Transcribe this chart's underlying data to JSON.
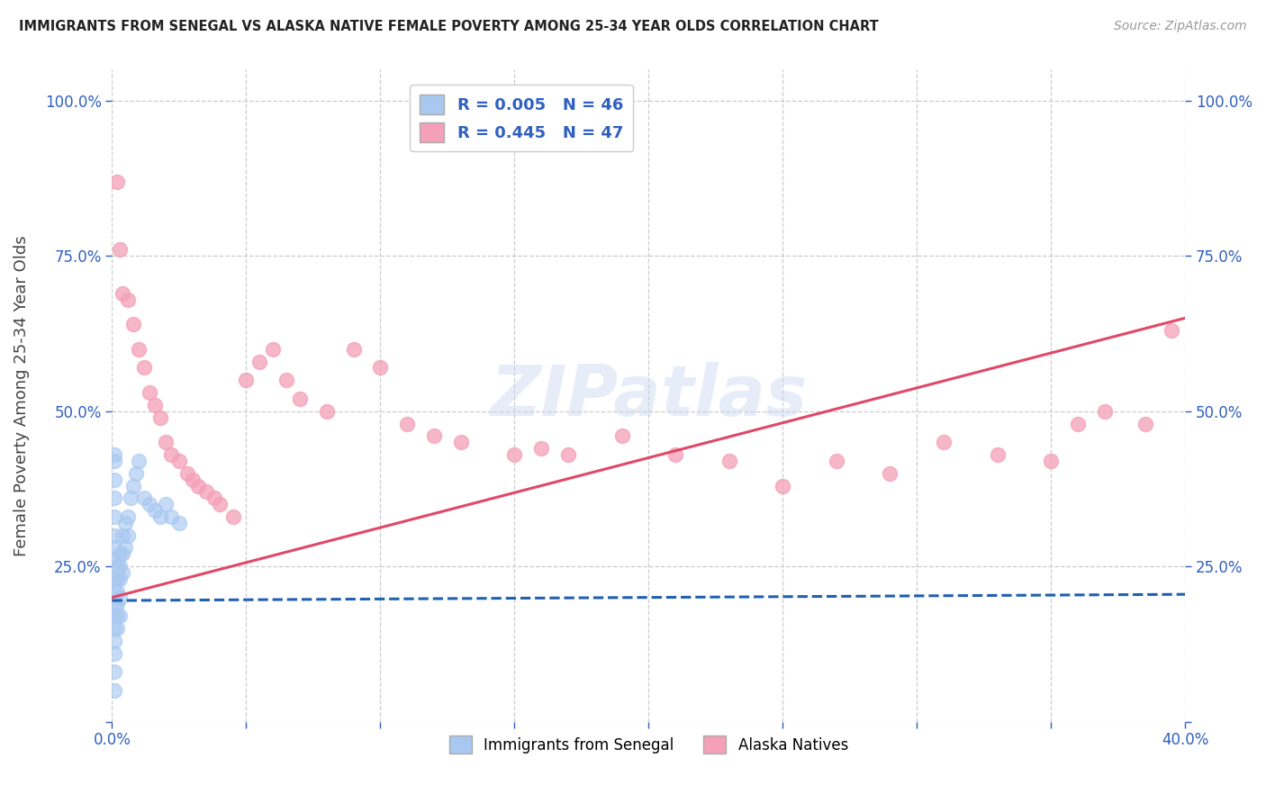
{
  "title": "IMMIGRANTS FROM SENEGAL VS ALASKA NATIVE FEMALE POVERTY AMONG 25-34 YEAR OLDS CORRELATION CHART",
  "source": "Source: ZipAtlas.com",
  "ylabel": "Female Poverty Among 25-34 Year Olds",
  "xlim": [
    0.0,
    0.4
  ],
  "ylim": [
    0.0,
    1.05
  ],
  "xtick_positions": [
    0.0,
    0.05,
    0.1,
    0.15,
    0.2,
    0.25,
    0.3,
    0.35,
    0.4
  ],
  "xtick_labels": [
    "0.0%",
    "",
    "",
    "",
    "",
    "",
    "",
    "",
    "40.0%"
  ],
  "ytick_positions": [
    0.0,
    0.25,
    0.5,
    0.75,
    1.0
  ],
  "ytick_labels_left": [
    "",
    "25.0%",
    "50.0%",
    "75.0%",
    "100.0%"
  ],
  "ytick_labels_right": [
    "",
    "25.0%",
    "50.0%",
    "75.0%",
    "100.0%"
  ],
  "blue_color": "#a8c8f0",
  "pink_color": "#f4a0b8",
  "blue_line_color": "#2060b0",
  "pink_line_color": "#e04868",
  "background_color": "#ffffff",
  "watermark_text": "ZIPatlas",
  "blue_trendline": [
    0.0,
    0.195,
    0.4,
    0.205
  ],
  "pink_trendline": [
    0.0,
    0.2,
    0.4,
    0.65
  ],
  "blue_x": [
    0.001,
    0.001,
    0.001,
    0.001,
    0.001,
    0.001,
    0.001,
    0.001,
    0.001,
    0.001,
    0.001,
    0.001,
    0.001,
    0.001,
    0.001,
    0.002,
    0.002,
    0.002,
    0.002,
    0.002,
    0.002,
    0.003,
    0.003,
    0.003,
    0.003,
    0.003,
    0.004,
    0.004,
    0.004,
    0.005,
    0.005,
    0.006,
    0.006,
    0.007,
    0.008,
    0.009,
    0.01,
    0.012,
    0.014,
    0.016,
    0.018,
    0.02,
    0.022,
    0.025,
    0.001,
    0.001
  ],
  "blue_y": [
    0.43,
    0.39,
    0.36,
    0.33,
    0.3,
    0.28,
    0.26,
    0.23,
    0.21,
    0.19,
    0.17,
    0.15,
    0.13,
    0.11,
    0.08,
    0.25,
    0.23,
    0.21,
    0.19,
    0.17,
    0.15,
    0.27,
    0.25,
    0.23,
    0.2,
    0.17,
    0.3,
    0.27,
    0.24,
    0.32,
    0.28,
    0.33,
    0.3,
    0.36,
    0.38,
    0.4,
    0.42,
    0.36,
    0.35,
    0.34,
    0.33,
    0.35,
    0.33,
    0.32,
    0.42,
    0.05
  ],
  "pink_x": [
    0.002,
    0.003,
    0.004,
    0.006,
    0.008,
    0.01,
    0.012,
    0.014,
    0.016,
    0.018,
    0.02,
    0.022,
    0.025,
    0.028,
    0.03,
    0.032,
    0.035,
    0.038,
    0.04,
    0.045,
    0.05,
    0.055,
    0.06,
    0.065,
    0.07,
    0.08,
    0.09,
    0.1,
    0.11,
    0.12,
    0.13,
    0.15,
    0.16,
    0.17,
    0.19,
    0.21,
    0.23,
    0.25,
    0.27,
    0.29,
    0.31,
    0.33,
    0.35,
    0.36,
    0.37,
    0.385,
    0.395
  ],
  "pink_y": [
    0.87,
    0.76,
    0.69,
    0.68,
    0.64,
    0.6,
    0.57,
    0.53,
    0.51,
    0.49,
    0.45,
    0.43,
    0.42,
    0.4,
    0.39,
    0.38,
    0.37,
    0.36,
    0.35,
    0.33,
    0.55,
    0.58,
    0.6,
    0.55,
    0.52,
    0.5,
    0.6,
    0.57,
    0.48,
    0.46,
    0.45,
    0.43,
    0.44,
    0.43,
    0.46,
    0.43,
    0.42,
    0.38,
    0.42,
    0.4,
    0.45,
    0.43,
    0.42,
    0.48,
    0.5,
    0.48,
    0.63
  ]
}
